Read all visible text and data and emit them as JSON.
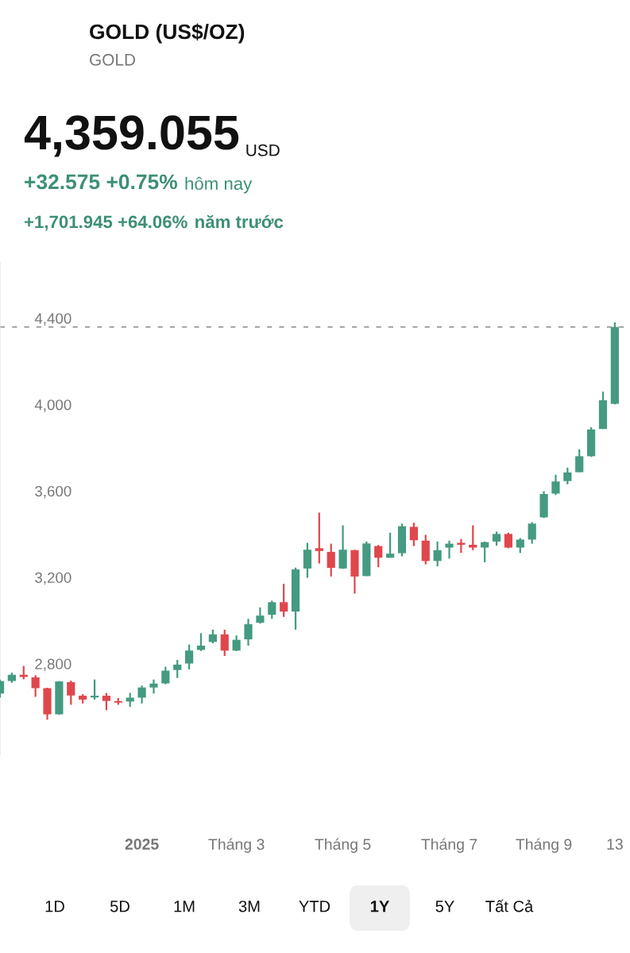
{
  "chart_data": {
    "type": "candlestick",
    "title": "GOLD (US$/OZ)",
    "subtitle": "GOLD",
    "annotations": [
      "4,359.055",
      "USD",
      "+32.575 +0.75%",
      "hôm nay",
      "+1,701.945 +64.06%",
      "năm trước",
      "1D",
      "5D",
      "1M",
      "3M",
      "YTD",
      "1Y",
      "5Y",
      "Tất Cả"
    ],
    "x": [
      "2024-10-14",
      "2024-10-21",
      "2024-10-28",
      "2024-11-04",
      "2024-11-11",
      "2024-11-18",
      "2024-11-25",
      "2024-12-02",
      "2024-12-09",
      "2024-12-16",
      "2024-12-23",
      "2024-12-30",
      "2025-01-06",
      "2025-01-13",
      "2025-01-20",
      "2025-01-27",
      "2025-02-03",
      "2025-02-10",
      "2025-02-17",
      "2025-02-24",
      "2025-03-03",
      "2025-03-10",
      "2025-03-17",
      "2025-03-24",
      "2025-03-31",
      "2025-04-07",
      "2025-04-14",
      "2025-04-21",
      "2025-04-28",
      "2025-05-05",
      "2025-05-12",
      "2025-05-19",
      "2025-05-26",
      "2025-06-02",
      "2025-06-09",
      "2025-06-16",
      "2025-06-23",
      "2025-06-30",
      "2025-07-07",
      "2025-07-14",
      "2025-07-21",
      "2025-07-28",
      "2025-08-04",
      "2025-08-11",
      "2025-08-18",
      "2025-08-25",
      "2025-09-01",
      "2025-09-08",
      "2025-09-15",
      "2025-09-22",
      "2025-09-29",
      "2025-10-06",
      "2025-10-13"
    ],
    "ohlc": [
      [
        2662,
        2727,
        2643,
        2720
      ],
      [
        2720,
        2759,
        2712,
        2749
      ],
      [
        2749,
        2790,
        2728,
        2739
      ],
      [
        2737,
        2747,
        2647,
        2687
      ],
      [
        2687,
        2689,
        2541,
        2566
      ],
      [
        2566,
        2720,
        2564,
        2718
      ],
      [
        2715,
        2722,
        2610,
        2653
      ],
      [
        2652,
        2659,
        2616,
        2634
      ],
      [
        2644,
        2727,
        2634,
        2652
      ],
      [
        2652,
        2665,
        2585,
        2628
      ],
      [
        2627,
        2641,
        2610,
        2620
      ],
      [
        2625,
        2665,
        2600,
        2643
      ],
      [
        2643,
        2699,
        2616,
        2690
      ],
      [
        2690,
        2727,
        2662,
        2708
      ],
      [
        2709,
        2786,
        2705,
        2768
      ],
      [
        2771,
        2818,
        2734,
        2796
      ],
      [
        2801,
        2889,
        2774,
        2861
      ],
      [
        2864,
        2942,
        2859,
        2884
      ],
      [
        2901,
        2958,
        2895,
        2936
      ],
      [
        2936,
        2958,
        2836,
        2861
      ],
      [
        2861,
        2931,
        2859,
        2911
      ],
      [
        2913,
        3008,
        2884,
        2983
      ],
      [
        2990,
        3061,
        2986,
        3023
      ],
      [
        3027,
        3092,
        3008,
        3085
      ],
      [
        3085,
        3170,
        3017,
        3042
      ],
      [
        3042,
        3245,
        2958,
        3237
      ],
      [
        3241,
        3360,
        3198,
        3328
      ],
      [
        3335,
        3500,
        3264,
        3322
      ],
      [
        3318,
        3356,
        3204,
        3244
      ],
      [
        3241,
        3441,
        3239,
        3328
      ],
      [
        3326,
        3328,
        3125,
        3204
      ],
      [
        3206,
        3366,
        3206,
        3357
      ],
      [
        3345,
        3350,
        3247,
        3291
      ],
      [
        3291,
        3407,
        3291,
        3310
      ],
      [
        3312,
        3449,
        3297,
        3437
      ],
      [
        3434,
        3453,
        3345,
        3372
      ],
      [
        3370,
        3397,
        3260,
        3276
      ],
      [
        3276,
        3366,
        3251,
        3326
      ],
      [
        3338,
        3370,
        3287,
        3356
      ],
      [
        3360,
        3378,
        3313,
        3351
      ],
      [
        3351,
        3441,
        3326,
        3338
      ],
      [
        3338,
        3366,
        3270,
        3363
      ],
      [
        3366,
        3412,
        3347,
        3401
      ],
      [
        3401,
        3407,
        3335,
        3338
      ],
      [
        3338,
        3382,
        3313,
        3375
      ],
      [
        3375,
        3456,
        3356,
        3449
      ],
      [
        3478,
        3599,
        3475,
        3586
      ],
      [
        3588,
        3675,
        3581,
        3644
      ],
      [
        3646,
        3708,
        3631,
        3686
      ],
      [
        3687,
        3793,
        3687,
        3761
      ],
      [
        3761,
        3895,
        3758,
        3885
      ],
      [
        3887,
        4060,
        3887,
        4020
      ],
      [
        4004,
        4381,
        4001,
        4359
      ]
    ],
    "colors": [
      "#459a82",
      "#459a82",
      "#e0474c",
      "#e0474c",
      "#e0474c",
      "#459a82",
      "#e0474c",
      "#e0474c",
      "#459a82",
      "#e0474c",
      "#e0474c",
      "#459a82",
      "#459a82",
      "#459a82",
      "#459a82",
      "#459a82",
      "#459a82",
      "#459a82",
      "#459a82",
      "#e0474c",
      "#459a82",
      "#459a82",
      "#459a82",
      "#459a82",
      "#e0474c",
      "#459a82",
      "#459a82",
      "#e0474c",
      "#e0474c",
      "#459a82",
      "#e0474c",
      "#459a82",
      "#e0474c",
      "#459a82",
      "#459a82",
      "#e0474c",
      "#e0474c",
      "#459a82",
      "#459a82",
      "#e0474c",
      "#e0474c",
      "#459a82",
      "#459a82",
      "#e0474c",
      "#459a82",
      "#459a82",
      "#459a82",
      "#459a82",
      "#459a82",
      "#459a82",
      "#459a82",
      "#459a82",
      "#459a82"
    ],
    "xlim": [
      "2024-10-14",
      "2025-10-22"
    ],
    "xticks": [
      {
        "value": "2025-01-06",
        "label": "2025"
      },
      {
        "value": "2025-03-03",
        "label": "Tháng 3"
      },
      {
        "value": "2025-05-05",
        "label": "Tháng 5"
      },
      {
        "value": "2025-07-07",
        "label": "Tháng 7"
      },
      {
        "value": "2025-09-01",
        "label": "Tháng 9"
      },
      {
        "value": "2025-10-13",
        "label": "13"
      }
    ],
    "ylim": [
      2380,
      4660
    ],
    "yticks": [
      {
        "value": 2800,
        "label": "2,800"
      },
      {
        "value": 3200,
        "label": "3,200"
      },
      {
        "value": 3600,
        "label": "3,600"
      },
      {
        "value": 4000,
        "label": "4,000"
      },
      {
        "value": 4400,
        "label": "4,400"
      }
    ],
    "ref_lines": [
      {
        "axis": "y",
        "value": 4359,
        "color": "#8a8a8a",
        "line_style": "dashed"
      }
    ],
    "grid": false,
    "legend": false
  }
}
